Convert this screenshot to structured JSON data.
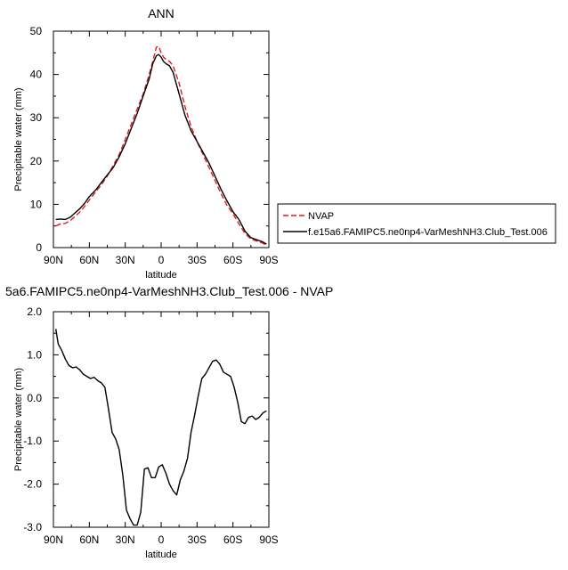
{
  "chart_data": [
    {
      "type": "line",
      "title": "ANN",
      "xlabel": "latitude",
      "ylabel": "Precipitable water (mm)",
      "x_tick_labels": [
        "90N",
        "60N",
        "30N",
        "0",
        "30S",
        "60S",
        "90S"
      ],
      "x_ticks": [
        90,
        60,
        30,
        0,
        -30,
        -60,
        -90
      ],
      "xlim": [
        90,
        -90
      ],
      "y_ticks": [
        0,
        10,
        20,
        30,
        40,
        50
      ],
      "y_tick_labels": [
        "0",
        "10",
        "20",
        "30",
        "40",
        "50"
      ],
      "ylim": [
        0,
        50
      ],
      "legend_position": "right",
      "series": [
        {
          "name": "NVAP",
          "color": "#e41a1c",
          "dash": "dashed",
          "x": [
            88,
            84,
            80,
            76,
            72,
            68,
            64,
            60,
            55,
            50,
            45,
            40,
            35,
            30,
            25,
            20,
            15,
            10,
            7,
            4,
            2,
            0,
            -2,
            -4,
            -7,
            -10,
            -15,
            -20,
            -25,
            -30,
            -35,
            -40,
            -45,
            -50,
            -55,
            -60,
            -65,
            -70,
            -75,
            -80,
            -85,
            -88
          ],
          "y": [
            5.0,
            5.5,
            5.6,
            6.2,
            7.2,
            8.2,
            9.5,
            11.0,
            12.8,
            14.5,
            16.5,
            19.0,
            21.5,
            25.0,
            28.5,
            32.0,
            35.5,
            40.0,
            43.0,
            46.3,
            46.5,
            45.0,
            44.0,
            43.5,
            43.0,
            42.0,
            38.0,
            32.5,
            28.0,
            24.5,
            21.5,
            18.5,
            15.5,
            12.5,
            9.8,
            7.8,
            5.5,
            3.3,
            2.0,
            1.5,
            1.0,
            0.5
          ]
        },
        {
          "name": "f.e15a6.FAMIPC5.ne0np4-VarMeshNH3.Club_Test.006",
          "color": "#000000",
          "dash": "solid",
          "x": [
            88,
            84,
            80,
            76,
            72,
            68,
            64,
            60,
            55,
            50,
            45,
            40,
            35,
            30,
            25,
            20,
            15,
            10,
            7,
            4,
            2,
            0,
            -2,
            -4,
            -7,
            -10,
            -15,
            -20,
            -25,
            -30,
            -35,
            -40,
            -45,
            -50,
            -55,
            -60,
            -65,
            -70,
            -75,
            -80,
            -85,
            -88
          ],
          "y": [
            6.5,
            6.6,
            6.5,
            7.0,
            8.0,
            9.0,
            10.2,
            11.8,
            13.2,
            15.0,
            16.8,
            18.5,
            21.0,
            24.0,
            27.5,
            31.0,
            35.0,
            39.0,
            42.5,
            44.3,
            44.6,
            44.0,
            43.0,
            42.5,
            42.0,
            40.5,
            35.5,
            30.5,
            27.0,
            24.5,
            22.0,
            19.5,
            16.5,
            13.5,
            10.8,
            8.3,
            6.5,
            3.8,
            2.3,
            1.8,
            1.3,
            0.8
          ]
        }
      ]
    },
    {
      "type": "line",
      "title": "5a6.FAMIPC5.ne0np4-VarMeshNH3.Club_Test.006 - NVAP",
      "xlabel": "latitude",
      "ylabel": "Precipitable water (mm)",
      "x_tick_labels": [
        "90N",
        "60N",
        "30N",
        "0",
        "30S",
        "60S",
        "90S"
      ],
      "x_ticks": [
        90,
        60,
        30,
        0,
        -30,
        -60,
        -90
      ],
      "xlim": [
        90,
        -90
      ],
      "y_ticks": [
        2.0,
        1.0,
        0.0,
        -1.0,
        -2.0,
        -3.0
      ],
      "y_tick_labels": [
        "2.0",
        "1.0",
        "0.0",
        "-1.0",
        "-2.0",
        "-3.0"
      ],
      "ylim": [
        -3,
        2
      ],
      "series": [
        {
          "color": "#000000",
          "dash": "solid",
          "x": [
            88,
            86,
            83,
            80,
            77,
            74,
            71,
            68,
            65,
            62,
            59,
            56,
            53,
            50,
            47,
            44,
            41,
            38,
            35,
            32,
            29,
            26,
            23,
            20,
            17,
            14,
            11,
            8,
            5,
            2,
            -1,
            -4,
            -7,
            -10,
            -13,
            -16,
            -19,
            -22,
            -25,
            -28,
            -31,
            -34,
            -37,
            -40,
            -43,
            -46,
            -49,
            -52,
            -55,
            -58,
            -61,
            -64,
            -67,
            -70,
            -73,
            -76,
            -79,
            -82,
            -85,
            -88
          ],
          "y": [
            1.6,
            1.25,
            1.1,
            0.9,
            0.75,
            0.7,
            0.72,
            0.65,
            0.55,
            0.5,
            0.45,
            0.48,
            0.4,
            0.35,
            0.25,
            -0.25,
            -0.8,
            -0.95,
            -1.2,
            -1.8,
            -2.6,
            -2.8,
            -2.95,
            -2.95,
            -2.65,
            -1.65,
            -1.62,
            -1.85,
            -1.85,
            -1.6,
            -1.55,
            -1.75,
            -2.0,
            -2.15,
            -2.25,
            -1.9,
            -1.7,
            -1.4,
            -0.8,
            -0.4,
            0.05,
            0.45,
            0.55,
            0.7,
            0.85,
            0.88,
            0.78,
            0.6,
            0.55,
            0.5,
            0.25,
            -0.1,
            -0.55,
            -0.6,
            -0.45,
            -0.42,
            -0.5,
            -0.45,
            -0.35,
            -0.3
          ]
        }
      ]
    }
  ]
}
